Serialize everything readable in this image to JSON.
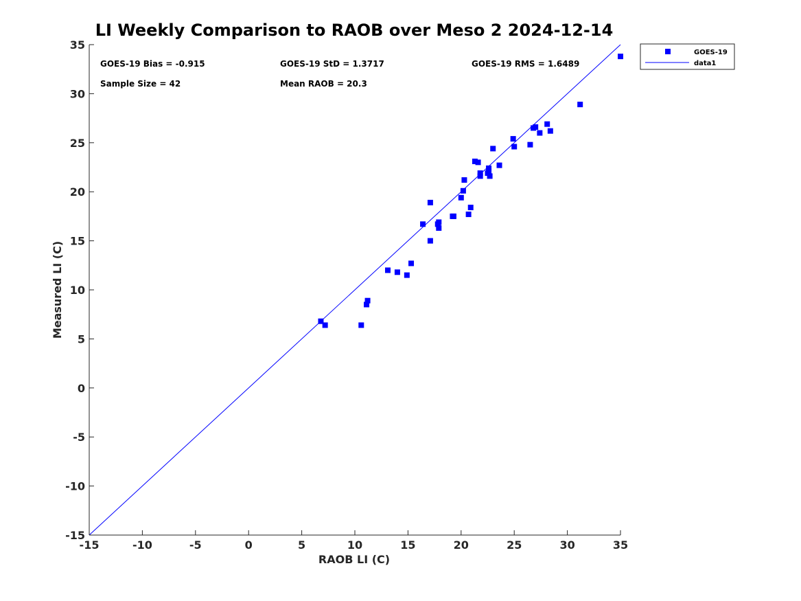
{
  "colors": {
    "marker": "#0000ff",
    "line": "#0000ff",
    "axis": "#262626"
  },
  "chart_data": {
    "type": "scatter",
    "title": "LI Weekly Comparison to RAOB over Meso 2 2024-12-14",
    "xlabel": "RAOB LI (C)",
    "ylabel": "Measured LI (C)",
    "xlim": [
      -15,
      35
    ],
    "ylim": [
      -15,
      35
    ],
    "xticks": [
      -15,
      -10,
      -5,
      0,
      5,
      10,
      15,
      20,
      25,
      30,
      35
    ],
    "yticks": [
      -15,
      -10,
      -5,
      0,
      5,
      10,
      15,
      20,
      25,
      30,
      35
    ],
    "xtick_labels": [
      "-15",
      "-10",
      "-5",
      "0",
      "5",
      "10",
      "15",
      "20",
      "25",
      "30",
      "35"
    ],
    "ytick_labels": [
      "-15",
      "-10",
      "-5",
      "0",
      "5",
      "10",
      "15",
      "20",
      "25",
      "30",
      "35"
    ],
    "grid": false,
    "legend_position": "outside-top-right",
    "annotations": [
      "GOES-19 Bias = -0.915",
      "GOES-19 StD = 1.3717",
      "GOES-19 RMS = 1.6489",
      "Sample Size = 42",
      "Mean RAOB = 20.3"
    ],
    "series": [
      {
        "name": "GOES-19",
        "marker": "square",
        "x": [
          6.8,
          7.2,
          10.6,
          11.1,
          11.2,
          13.1,
          14.0,
          14.9,
          15.3,
          16.4,
          17.1,
          17.1,
          17.8,
          17.9,
          17.9,
          19.2,
          19.3,
          20.0,
          20.2,
          20.3,
          20.7,
          20.9,
          21.3,
          21.6,
          21.8,
          21.8,
          22.5,
          22.6,
          22.6,
          22.7,
          23.0,
          23.6,
          24.9,
          25.0,
          26.5,
          26.8,
          27.0,
          27.4,
          28.1,
          28.4,
          31.2,
          35.0
        ],
        "y": [
          6.8,
          6.4,
          6.4,
          8.5,
          8.9,
          12.0,
          11.8,
          11.5,
          12.7,
          16.7,
          15.0,
          18.9,
          16.7,
          16.9,
          16.3,
          17.5,
          17.5,
          19.4,
          20.1,
          21.2,
          17.7,
          18.4,
          23.1,
          23.0,
          21.6,
          21.9,
          21.9,
          22.4,
          22.1,
          21.6,
          24.4,
          22.7,
          25.4,
          24.6,
          24.8,
          26.5,
          26.6,
          26.0,
          26.9,
          26.2,
          28.9,
          33.8
        ]
      },
      {
        "name": "data1",
        "marker": "none",
        "x": [
          -15,
          35
        ],
        "y": [
          -15,
          35
        ]
      }
    ]
  }
}
